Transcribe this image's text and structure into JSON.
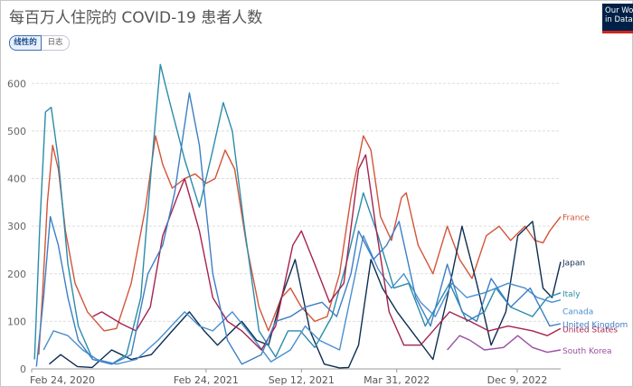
{
  "title": "每百万人住院的 COVID-19 患者人数",
  "toggle": {
    "linear": "线性的",
    "log": "日志"
  },
  "logo": {
    "line1": "Our World",
    "line2": "in Data"
  },
  "chart_data": {
    "type": "line",
    "x_ticks": [
      "Feb 24, 2020",
      "Feb 24, 2021",
      "Sep 12, 2021",
      "Mar 31, 2022",
      "Dec 9, 2022"
    ],
    "y_ticks": [
      "0",
      "100",
      "200",
      "300",
      "400",
      "500",
      "600"
    ],
    "ylim": [
      0,
      650
    ],
    "xlim": [
      "2020-02-24",
      "2023-03-10"
    ],
    "grid": "horizontal dashed",
    "series": [
      {
        "name": "France",
        "color": "#d2553a",
        "label_offset": 0,
        "points": [
          [
            "2020-03-10",
            30
          ],
          [
            "2020-03-18",
            160
          ],
          [
            "2020-03-28",
            350
          ],
          [
            "2020-04-08",
            470
          ],
          [
            "2020-04-20",
            420
          ],
          [
            "2020-05-05",
            290
          ],
          [
            "2020-05-25",
            180
          ],
          [
            "2020-06-20",
            120
          ],
          [
            "2020-07-25",
            80
          ],
          [
            "2020-08-20",
            85
          ],
          [
            "2020-09-20",
            180
          ],
          [
            "2020-10-20",
            340
          ],
          [
            "2020-11-10",
            490
          ],
          [
            "2020-11-25",
            430
          ],
          [
            "2020-12-15",
            380
          ],
          [
            "2021-01-10",
            400
          ],
          [
            "2021-02-01",
            410
          ],
          [
            "2021-02-24",
            390
          ],
          [
            "2021-03-15",
            400
          ],
          [
            "2021-04-05",
            460
          ],
          [
            "2021-04-25",
            420
          ],
          [
            "2021-05-20",
            260
          ],
          [
            "2021-06-15",
            130
          ],
          [
            "2021-07-05",
            80
          ],
          [
            "2021-08-01",
            150
          ],
          [
            "2021-08-20",
            170
          ],
          [
            "2021-09-12",
            130
          ],
          [
            "2021-10-10",
            100
          ],
          [
            "2021-11-05",
            110
          ],
          [
            "2021-12-01",
            200
          ],
          [
            "2021-12-25",
            360
          ],
          [
            "2022-01-20",
            490
          ],
          [
            "2022-02-05",
            460
          ],
          [
            "2022-02-25",
            320
          ],
          [
            "2022-03-20",
            270
          ],
          [
            "2022-04-10",
            360
          ],
          [
            "2022-04-20",
            370
          ],
          [
            "2022-05-15",
            260
          ],
          [
            "2022-06-15",
            200
          ],
          [
            "2022-07-15",
            300
          ],
          [
            "2022-08-10",
            230
          ],
          [
            "2022-09-05",
            190
          ],
          [
            "2022-10-05",
            280
          ],
          [
            "2022-11-01",
            300
          ],
          [
            "2022-11-25",
            270
          ],
          [
            "2022-12-25",
            300
          ],
          [
            "2023-01-15",
            270
          ],
          [
            "2023-02-01",
            265
          ],
          [
            "2023-02-15",
            290
          ],
          [
            "2023-03-10",
            320
          ]
        ]
      },
      {
        "name": "Japan",
        "color": "#0d2e52",
        "label_offset": 0,
        "points": [
          [
            "2020-04-01",
            10
          ],
          [
            "2020-04-25",
            30
          ],
          [
            "2020-05-30",
            5
          ],
          [
            "2020-06-30",
            3
          ],
          [
            "2020-08-10",
            40
          ],
          [
            "2020-09-20",
            20
          ],
          [
            "2020-11-01",
            30
          ],
          [
            "2020-12-15",
            80
          ],
          [
            "2021-01-20",
            120
          ],
          [
            "2021-02-20",
            80
          ],
          [
            "2021-03-20",
            50
          ],
          [
            "2021-05-10",
            100
          ],
          [
            "2021-06-10",
            60
          ],
          [
            "2021-07-05",
            50
          ],
          [
            "2021-08-01",
            150
          ],
          [
            "2021-08-30",
            230
          ],
          [
            "2021-09-30",
            80
          ],
          [
            "2021-10-30",
            10
          ],
          [
            "2021-12-01",
            2
          ],
          [
            "2021-12-20",
            3
          ],
          [
            "2022-01-10",
            50
          ],
          [
            "2022-02-05",
            230
          ],
          [
            "2022-03-01",
            170
          ],
          [
            "2022-04-01",
            120
          ],
          [
            "2022-05-01",
            80
          ],
          [
            "2022-06-15",
            20
          ],
          [
            "2022-07-15",
            150
          ],
          [
            "2022-08-15",
            300
          ],
          [
            "2022-09-15",
            180
          ],
          [
            "2022-10-15",
            50
          ],
          [
            "2022-11-15",
            120
          ],
          [
            "2022-12-10",
            280
          ],
          [
            "2023-01-10",
            310
          ],
          [
            "2023-02-01",
            170
          ],
          [
            "2023-02-20",
            150
          ],
          [
            "2023-03-10",
            225
          ]
        ]
      },
      {
        "name": "Italy",
        "color": "#2a8caa",
        "label_offset": 0,
        "points": [
          [
            "2020-03-01",
            20
          ],
          [
            "2020-03-12",
            300
          ],
          [
            "2020-03-24",
            540
          ],
          [
            "2020-04-05",
            550
          ],
          [
            "2020-04-20",
            440
          ],
          [
            "2020-05-10",
            220
          ],
          [
            "2020-06-01",
            90
          ],
          [
            "2020-07-01",
            20
          ],
          [
            "2020-08-10",
            10
          ],
          [
            "2020-09-10",
            30
          ],
          [
            "2020-10-10",
            150
          ],
          [
            "2020-11-01",
            420
          ],
          [
            "2020-11-20",
            640
          ],
          [
            "2020-12-10",
            560
          ],
          [
            "2021-01-10",
            440
          ],
          [
            "2021-02-10",
            340
          ],
          [
            "2021-03-10",
            460
          ],
          [
            "2021-04-01",
            560
          ],
          [
            "2021-04-20",
            500
          ],
          [
            "2021-05-15",
            300
          ],
          [
            "2021-06-15",
            80
          ],
          [
            "2021-07-20",
            25
          ],
          [
            "2021-08-15",
            80
          ],
          [
            "2021-09-10",
            80
          ],
          [
            "2021-10-10",
            45
          ],
          [
            "2021-11-15",
            110
          ],
          [
            "2021-12-15",
            220
          ],
          [
            "2022-01-20",
            370
          ],
          [
            "2022-02-20",
            280
          ],
          [
            "2022-03-25",
            170
          ],
          [
            "2022-04-25",
            180
          ],
          [
            "2022-05-30",
            90
          ],
          [
            "2022-07-20",
            180
          ],
          [
            "2022-08-25",
            100
          ],
          [
            "2022-10-01",
            120
          ],
          [
            "2022-10-25",
            170
          ],
          [
            "2022-11-25",
            130
          ],
          [
            "2023-01-10",
            110
          ],
          [
            "2023-02-10",
            150
          ],
          [
            "2023-03-10",
            160
          ]
        ]
      },
      {
        "name": "Canada",
        "color": "#4a8fcf",
        "label_offset": 12,
        "points": [
          [
            "2020-03-20",
            40
          ],
          [
            "2020-04-10",
            80
          ],
          [
            "2020-05-10",
            70
          ],
          [
            "2020-06-10",
            40
          ],
          [
            "2020-07-10",
            20
          ],
          [
            "2020-08-20",
            10
          ],
          [
            "2020-10-01",
            20
          ],
          [
            "2020-11-15",
            60
          ],
          [
            "2021-01-10",
            120
          ],
          [
            "2021-02-10",
            90
          ],
          [
            "2021-03-10",
            80
          ],
          [
            "2021-04-20",
            120
          ],
          [
            "2021-05-30",
            70
          ],
          [
            "2021-07-10",
            15
          ],
          [
            "2021-08-20",
            40
          ],
          [
            "2021-09-20",
            90
          ],
          [
            "2021-10-20",
            60
          ],
          [
            "2021-12-01",
            40
          ],
          [
            "2022-01-20",
            280
          ],
          [
            "2022-02-20",
            210
          ],
          [
            "2022-03-20",
            170
          ],
          [
            "2022-04-15",
            200
          ],
          [
            "2022-05-20",
            140
          ],
          [
            "2022-06-20",
            110
          ],
          [
            "2022-07-25",
            180
          ],
          [
            "2022-08-25",
            150
          ],
          [
            "2022-10-01",
            160
          ],
          [
            "2022-11-20",
            180
          ],
          [
            "2022-12-25",
            170
          ],
          [
            "2023-01-20",
            150
          ],
          [
            "2023-02-20",
            140
          ],
          [
            "2023-03-10",
            145
          ]
        ]
      },
      {
        "name": "United States",
        "color": "#a5234e",
        "label_offset": 0,
        "points": [
          [
            "2020-07-01",
            110
          ],
          [
            "2020-07-20",
            120
          ],
          [
            "2020-08-30",
            95
          ],
          [
            "2020-09-30",
            80
          ],
          [
            "2020-10-30",
            130
          ],
          [
            "2020-11-25",
            280
          ],
          [
            "2020-12-25",
            360
          ],
          [
            "2021-01-10",
            400
          ],
          [
            "2021-02-10",
            290
          ],
          [
            "2021-03-10",
            150
          ],
          [
            "2021-04-10",
            100
          ],
          [
            "2021-05-10",
            80
          ],
          [
            "2021-06-20",
            40
          ],
          [
            "2021-07-20",
            90
          ],
          [
            "2021-08-25",
            260
          ],
          [
            "2021-09-12",
            290
          ],
          [
            "2021-10-10",
            220
          ],
          [
            "2021-11-10",
            140
          ],
          [
            "2021-12-10",
            180
          ],
          [
            "2022-01-10",
            420
          ],
          [
            "2022-01-25",
            450
          ],
          [
            "2022-02-15",
            300
          ],
          [
            "2022-03-15",
            120
          ],
          [
            "2022-04-15",
            50
          ],
          [
            "2022-05-20",
            50
          ],
          [
            "2022-07-20",
            120
          ],
          [
            "2022-09-01",
            100
          ],
          [
            "2022-10-10",
            80
          ],
          [
            "2022-11-20",
            90
          ],
          [
            "2023-01-10",
            80
          ],
          [
            "2023-02-10",
            70
          ],
          [
            "2023-03-10",
            85
          ]
        ]
      },
      {
        "name": "United Kingdom",
        "color": "#3d7fc4",
        "label_offset": 0,
        "points": [
          [
            "2020-03-05",
            5
          ],
          [
            "2020-03-20",
            150
          ],
          [
            "2020-04-03",
            320
          ],
          [
            "2020-04-20",
            260
          ],
          [
            "2020-05-10",
            150
          ],
          [
            "2020-06-01",
            60
          ],
          [
            "2020-07-01",
            20
          ],
          [
            "2020-08-10",
            10
          ],
          [
            "2020-09-20",
            30
          ],
          [
            "2020-10-25",
            200
          ],
          [
            "2020-11-25",
            260
          ],
          [
            "2020-12-20",
            370
          ],
          [
            "2021-01-20",
            580
          ],
          [
            "2021-02-10",
            470
          ],
          [
            "2021-03-10",
            200
          ],
          [
            "2021-04-10",
            60
          ],
          [
            "2021-05-10",
            10
          ],
          [
            "2021-06-20",
            30
          ],
          [
            "2021-07-20",
            100
          ],
          [
            "2021-08-20",
            110
          ],
          [
            "2021-09-20",
            130
          ],
          [
            "2021-10-25",
            140
          ],
          [
            "2021-11-25",
            110
          ],
          [
            "2021-12-25",
            200
          ],
          [
            "2022-01-10",
            290
          ],
          [
            "2022-02-10",
            230
          ],
          [
            "2022-03-10",
            260
          ],
          [
            "2022-04-05",
            310
          ],
          [
            "2022-05-10",
            150
          ],
          [
            "2022-06-10",
            90
          ],
          [
            "2022-07-15",
            220
          ],
          [
            "2022-08-15",
            120
          ],
          [
            "2022-09-15",
            100
          ],
          [
            "2022-10-15",
            190
          ],
          [
            "2022-11-25",
            130
          ],
          [
            "2023-01-05",
            170
          ],
          [
            "2023-02-15",
            90
          ],
          [
            "2023-03-10",
            95
          ]
        ]
      },
      {
        "name": "South Korea",
        "color": "#9b4fa3",
        "label_offset": 0,
        "points": [
          [
            "2022-07-15",
            40
          ],
          [
            "2022-08-10",
            70
          ],
          [
            "2022-09-01",
            60
          ],
          [
            "2022-10-01",
            40
          ],
          [
            "2022-11-10",
            45
          ],
          [
            "2022-12-10",
            70
          ],
          [
            "2023-01-10",
            45
          ],
          [
            "2023-02-10",
            35
          ],
          [
            "2023-03-10",
            40
          ]
        ]
      }
    ]
  }
}
